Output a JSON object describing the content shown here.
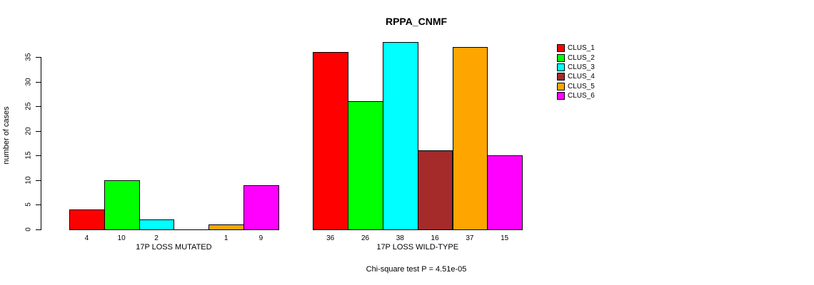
{
  "chart_data": {
    "type": "bar",
    "title": "RPPA_CNMF",
    "ylabel": "number of cases",
    "footnote": "Chi-square test P = 4.51e-05",
    "ylim": [
      0,
      38
    ],
    "yticks": [
      0,
      5,
      10,
      15,
      20,
      25,
      30,
      35
    ],
    "grid": false,
    "legend_position": "right",
    "clusters": [
      {
        "name": "CLUS_1",
        "color": "#ff0000"
      },
      {
        "name": "CLUS_2",
        "color": "#00ff00"
      },
      {
        "name": "CLUS_3",
        "color": "#00ffff"
      },
      {
        "name": "CLUS_4",
        "color": "#a52a2a"
      },
      {
        "name": "CLUS_5",
        "color": "#ffa500"
      },
      {
        "name": "CLUS_6",
        "color": "#ff00ff"
      }
    ],
    "groups": [
      {
        "label": "17P LOSS MUTATED",
        "values": [
          4,
          10,
          2,
          0,
          1,
          9
        ],
        "bar_labels": [
          "4",
          "10",
          "2",
          "",
          "1",
          "9"
        ]
      },
      {
        "label": "17P LOSS WILD-TYPE",
        "values": [
          36,
          26,
          38,
          16,
          37,
          15
        ],
        "bar_labels": [
          "36",
          "26",
          "38",
          "16",
          "37",
          "15"
        ]
      }
    ]
  }
}
